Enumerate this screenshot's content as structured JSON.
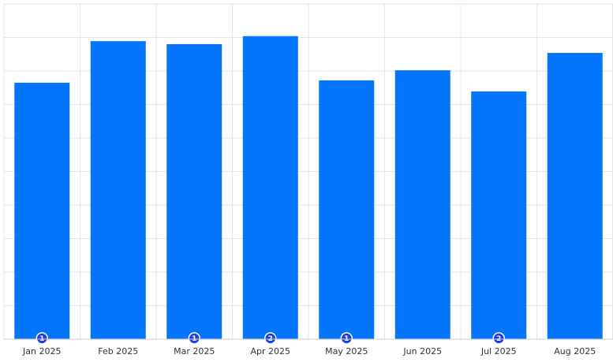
{
  "chart_data": {
    "type": "bar",
    "categories": [
      "Jan 2025",
      "Feb 2025",
      "Mar 2025",
      "Apr 2025",
      "May 2025",
      "Jun 2025",
      "Jul 2025",
      "Aug 2025"
    ],
    "values": [
      7.65,
      8.89,
      8.8,
      9.04,
      7.72,
      8.02,
      7.39,
      8.54
    ],
    "badges": [
      1,
      null,
      1,
      2,
      1,
      null,
      2,
      null
    ],
    "color": "#0575fb",
    "badge_color": "#1f3de6",
    "ylim": [
      0,
      10
    ],
    "yticks": [
      0,
      1,
      2,
      3,
      4,
      5,
      6,
      7,
      8,
      9,
      10
    ],
    "grid": true
  }
}
